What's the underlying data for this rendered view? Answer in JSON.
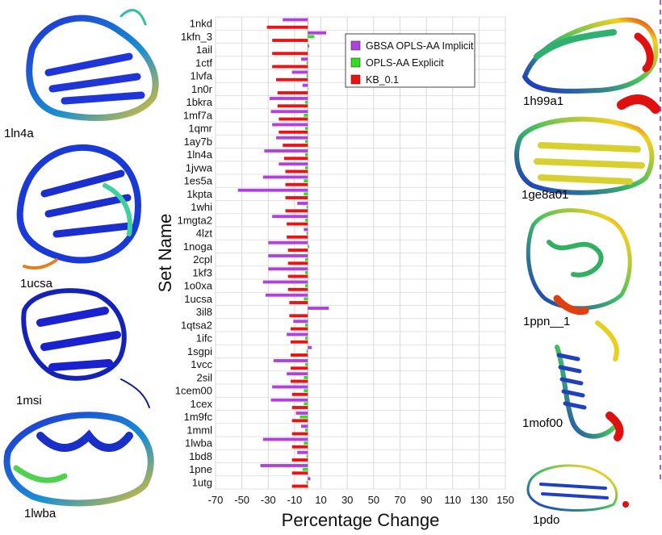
{
  "chart_data": {
    "type": "bar",
    "orientation": "horizontal",
    "ylabel": "Set Name",
    "xlabel": "Percentage Change",
    "xlim": [
      -70,
      150
    ],
    "xticks": [
      -70,
      -50,
      -30,
      -10,
      10,
      30,
      50,
      70,
      90,
      110,
      130,
      150
    ],
    "grid": true,
    "legend_position": "top-right",
    "categories": [
      "1nkd",
      "1kfn_3",
      "1ail",
      "1ctf",
      "1lvfa",
      "1n0r",
      "1bkra",
      "1mf7a",
      "1qmr",
      "1ay7b",
      "1ln4a",
      "1jvwa",
      "1es5a",
      "1kpta",
      "1whi",
      "1mgta2",
      "4lzt",
      "1noga",
      "2cpl",
      "1kf3",
      "1o0xa",
      "1ucsa",
      "3il8",
      "1qtsa2",
      "1ifc",
      "1sgpi",
      "1vcc",
      "2sil",
      "1cem00",
      "1cex",
      "1m9fc",
      "1mml",
      "1lwba",
      "1bd8",
      "1pne",
      "1utg"
    ],
    "series": [
      {
        "name": "GBSA OPLS-AA Implicit",
        "color": "#b040e0",
        "values": [
          -19,
          14,
          1,
          -5,
          -12,
          -4,
          -29,
          -28,
          -27,
          -24,
          -33,
          -22,
          -34,
          -53,
          -8,
          -27,
          -3,
          -30,
          -30,
          -30,
          -34,
          -32,
          16,
          -11,
          -16,
          3,
          -26,
          -16,
          -27,
          -28,
          -9,
          -5,
          -34,
          -8,
          -36,
          2
        ]
      },
      {
        "name": "OPLS-AA Explicit",
        "color": "#33dd22",
        "values": [
          0,
          5,
          0,
          -1,
          -1,
          0,
          -2,
          -3,
          -2,
          -2,
          -2,
          -2,
          -3,
          -3,
          -1,
          -2,
          -1,
          1,
          -2,
          -2,
          -2,
          -3,
          0,
          -2,
          -2,
          -1,
          -2,
          -3,
          -3,
          -3,
          -6,
          -2,
          -3,
          -1,
          -4,
          -1
        ]
      },
      {
        "name": "KB_0.1",
        "color": "#ee1111",
        "values": [
          -31,
          -27,
          -27,
          -27,
          -24,
          -23,
          -23,
          -22,
          -22,
          -19,
          -18,
          -17,
          -17,
          -17,
          -17,
          -16,
          -16,
          -15,
          -15,
          -15,
          -15,
          -14,
          -14,
          -13,
          -13,
          -13,
          -13,
          -13,
          -12,
          -12,
          -12,
          -12,
          -12,
          -12,
          -12,
          -12
        ]
      }
    ]
  },
  "protein_labels": [
    "1ln4a",
    "1ucsa",
    "1msi",
    "1lwba",
    "1h99a1",
    "1ge8a01",
    "1ppn__1",
    "1mof00",
    "1pdo"
  ]
}
